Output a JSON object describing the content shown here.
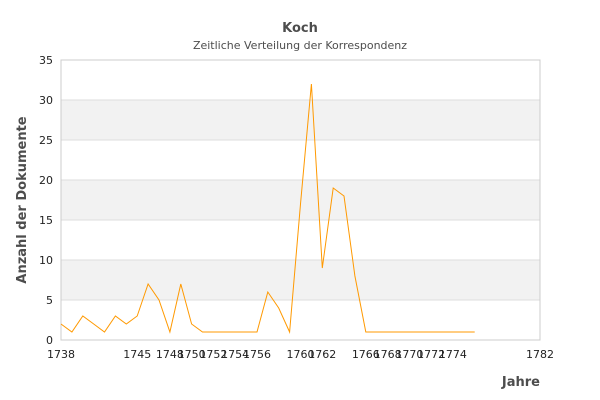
{
  "chart_data": {
    "type": "line",
    "title": "Koch",
    "subtitle": "Zeitliche Verteilung der Korrespondenz",
    "xlabel": "Jahre",
    "ylabel": "Anzahl der Dokumente",
    "xlim": [
      1738,
      1782
    ],
    "ylim": [
      0,
      35
    ],
    "x_ticks": [
      1738,
      1745,
      1748,
      1750,
      1752,
      1754,
      1756,
      1760,
      1762,
      1766,
      1768,
      1770,
      1772,
      1774,
      1782
    ],
    "y_ticks": [
      0,
      5,
      10,
      15,
      20,
      25,
      30,
      35
    ],
    "grid": "alternating horizontal bands",
    "legend": "none",
    "colors": {
      "line": "#ff9900",
      "band": "#f2f2f2",
      "gridline": "#dddddd",
      "axis": "#cccccc",
      "text": "#4d4d4d"
    },
    "series": [
      {
        "x": [
          1738,
          1739,
          1740,
          1741,
          1742,
          1743,
          1744,
          1745,
          1746,
          1747,
          1748,
          1749,
          1750,
          1751,
          1752,
          1753,
          1754,
          1755,
          1756,
          1757,
          1758,
          1759,
          1760,
          1761,
          1762,
          1763,
          1764,
          1765,
          1766,
          1767,
          1768,
          1769,
          1770,
          1771,
          1772,
          1773,
          1774,
          1775,
          1776
        ],
        "values": [
          2,
          1,
          3,
          2,
          1,
          3,
          2,
          3,
          7,
          5,
          1,
          7,
          2,
          1,
          1,
          1,
          1,
          1,
          1,
          6,
          4,
          1,
          17,
          32,
          9,
          19,
          18,
          8,
          1,
          1,
          1,
          1,
          1,
          1,
          1,
          1,
          1,
          1,
          1
        ]
      }
    ]
  }
}
